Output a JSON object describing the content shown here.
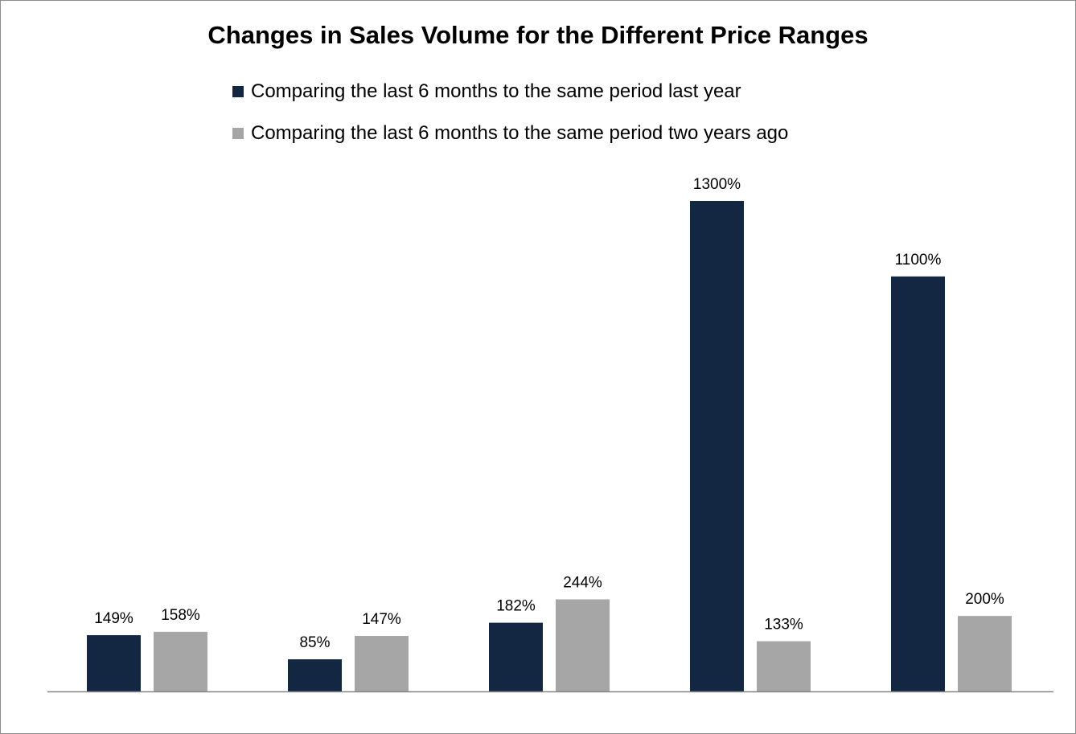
{
  "chart_data": {
    "type": "bar",
    "title": "Changes in Sales Volume for the Different Price Ranges",
    "xlabel": "",
    "ylabel": "",
    "categories": [
      "",
      "",
      "",
      "",
      ""
    ],
    "series": [
      {
        "name": "Comparing the last 6 months to the same period last year",
        "color": "#132642",
        "values": [
          149,
          85,
          182,
          1300,
          1100
        ],
        "labels": [
          "149%",
          "85%",
          "182%",
          "1300%",
          "1100%"
        ]
      },
      {
        "name": "Comparing the last 6 months to the same period two years ago",
        "color": "#a6a6a6",
        "values": [
          158,
          147,
          244,
          133,
          200
        ],
        "labels": [
          "158%",
          "147%",
          "244%",
          "133%",
          "200%"
        ]
      }
    ],
    "ylim": [
      0,
      1300
    ],
    "grid": false,
    "legend_position": "top"
  }
}
